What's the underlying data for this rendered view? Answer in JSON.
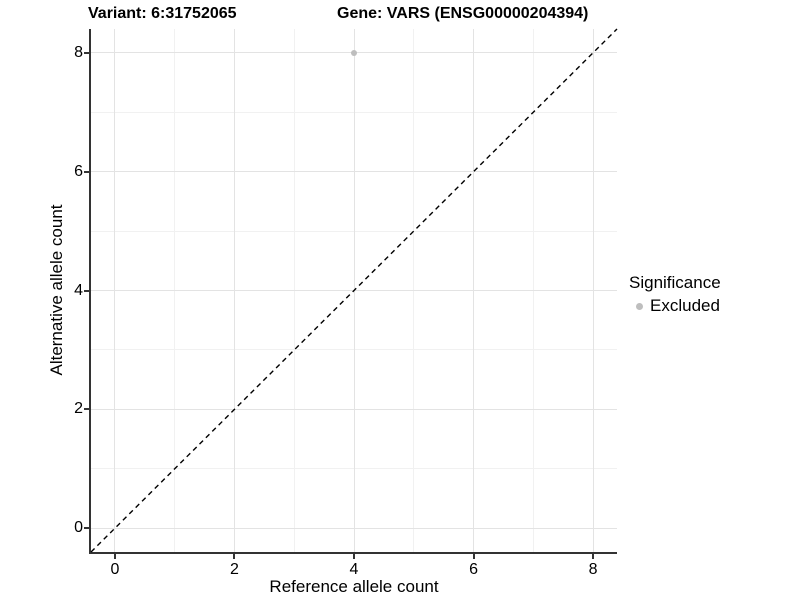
{
  "header": {
    "variant_title": "Variant: 6:31752065",
    "gene_title": "Gene: VARS (ENSG00000204394)"
  },
  "chart_data": {
    "type": "scatter",
    "title": "Variant: 6:31752065    Gene: VARS (ENSG00000204394)",
    "xlabel": "Reference allele count",
    "ylabel": "Alternative allele count",
    "xlim": [
      -0.4,
      8.4
    ],
    "ylim": [
      -0.4,
      8.4
    ],
    "x_ticks": [
      0,
      2,
      4,
      6,
      8
    ],
    "y_ticks": [
      0,
      2,
      4,
      6,
      8
    ],
    "x_minor_gridlines": [
      1,
      3,
      5,
      7
    ],
    "y_minor_gridlines": [
      1,
      3,
      5,
      7
    ],
    "grid": "major and minor gridlines on white panel",
    "series": [
      {
        "name": "Excluded",
        "color": "#BEBEBE",
        "points": [
          {
            "x": 4,
            "y": 8
          }
        ]
      }
    ],
    "reference_line": {
      "kind": "identity y=x",
      "style": "dashed",
      "color": "#000000"
    },
    "legend": {
      "title": "Significance",
      "position": "right",
      "items": [
        {
          "label": "Excluded",
          "color": "#BEBEBE",
          "marker": "circle"
        }
      ]
    }
  },
  "colors": {
    "background": "#FFFFFF",
    "axis": "#333333",
    "grid_major": "#E3E3E3",
    "grid_minor": "#F1F1F1",
    "text": "#000000",
    "excluded_point": "#BEBEBE"
  }
}
